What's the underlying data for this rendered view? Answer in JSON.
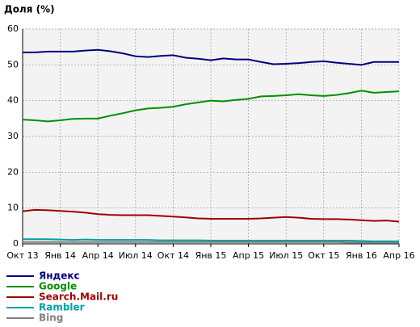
{
  "chart_data": {
    "type": "line",
    "title": "Доля (%)",
    "categories": [
      "Окт 13",
      null,
      null,
      "Янв 14",
      null,
      null,
      "Апр 14",
      null,
      null,
      "Июл 14",
      null,
      null,
      "Окт 14",
      null,
      null,
      "Янв 15",
      null,
      null,
      "Апр 15",
      null,
      null,
      "Июл 15",
      null,
      null,
      "Окт 15",
      null,
      null,
      "Янв 16",
      null,
      null,
      "Апр 16"
    ],
    "ylim": [
      0,
      60
    ],
    "yticks": [
      0,
      10,
      20,
      30,
      40,
      50,
      60
    ],
    "grid": true,
    "series": [
      {
        "name": "Яндекс",
        "color": "#000080",
        "values": [
          53.5,
          53.5,
          53.7,
          53.7,
          53.7,
          54.0,
          54.2,
          53.8,
          53.2,
          52.4,
          52.2,
          52.5,
          52.7,
          52.0,
          51.7,
          51.3,
          51.8,
          51.5,
          51.5,
          50.8,
          50.2,
          50.3,
          50.5,
          50.8,
          51.0,
          50.6,
          50.3,
          50.0,
          50.8,
          50.8,
          50.8
        ]
      },
      {
        "name": "Google",
        "color": "#009000",
        "values": [
          34.7,
          34.5,
          34.2,
          34.5,
          34.9,
          35.0,
          35.0,
          35.8,
          36.5,
          37.3,
          37.8,
          38.0,
          38.3,
          39.0,
          39.5,
          40.0,
          39.8,
          40.2,
          40.5,
          41.2,
          41.3,
          41.5,
          41.8,
          41.5,
          41.3,
          41.6,
          42.1,
          42.8,
          42.2,
          42.4,
          42.6
        ]
      },
      {
        "name": "Search.Mail.ru",
        "color": "#a00000",
        "values": [
          9.1,
          9.5,
          9.4,
          9.2,
          9.0,
          8.7,
          8.3,
          8.1,
          8.0,
          8.0,
          8.0,
          7.8,
          7.6,
          7.4,
          7.1,
          7.0,
          7.0,
          7.0,
          7.0,
          7.1,
          7.3,
          7.5,
          7.3,
          7.0,
          6.9,
          6.9,
          6.8,
          6.6,
          6.4,
          6.5,
          6.2
        ]
      },
      {
        "name": "Rambler",
        "color": "#00a0a0",
        "values": [
          1.3,
          1.3,
          1.3,
          1.2,
          1.1,
          1.2,
          1.1,
          1.1,
          1.1,
          1.1,
          1.1,
          1.0,
          1.0,
          1.0,
          1.0,
          0.9,
          0.9,
          0.9,
          0.9,
          0.9,
          0.9,
          0.9,
          0.9,
          0.9,
          0.9,
          0.9,
          0.9,
          0.8,
          0.7,
          0.7,
          0.7
        ]
      },
      {
        "name": "Bing",
        "color": "#808080",
        "values": [
          0.5,
          0.5,
          0.5,
          0.5,
          0.5,
          0.5,
          0.5,
          0.5,
          0.5,
          0.5,
          0.5,
          0.5,
          0.5,
          0.5,
          0.5,
          0.5,
          0.5,
          0.5,
          0.5,
          0.5,
          0.5,
          0.5,
          0.5,
          0.5,
          0.5,
          0.5,
          0.4,
          0.4,
          0.4,
          0.4,
          0.4
        ]
      }
    ]
  }
}
